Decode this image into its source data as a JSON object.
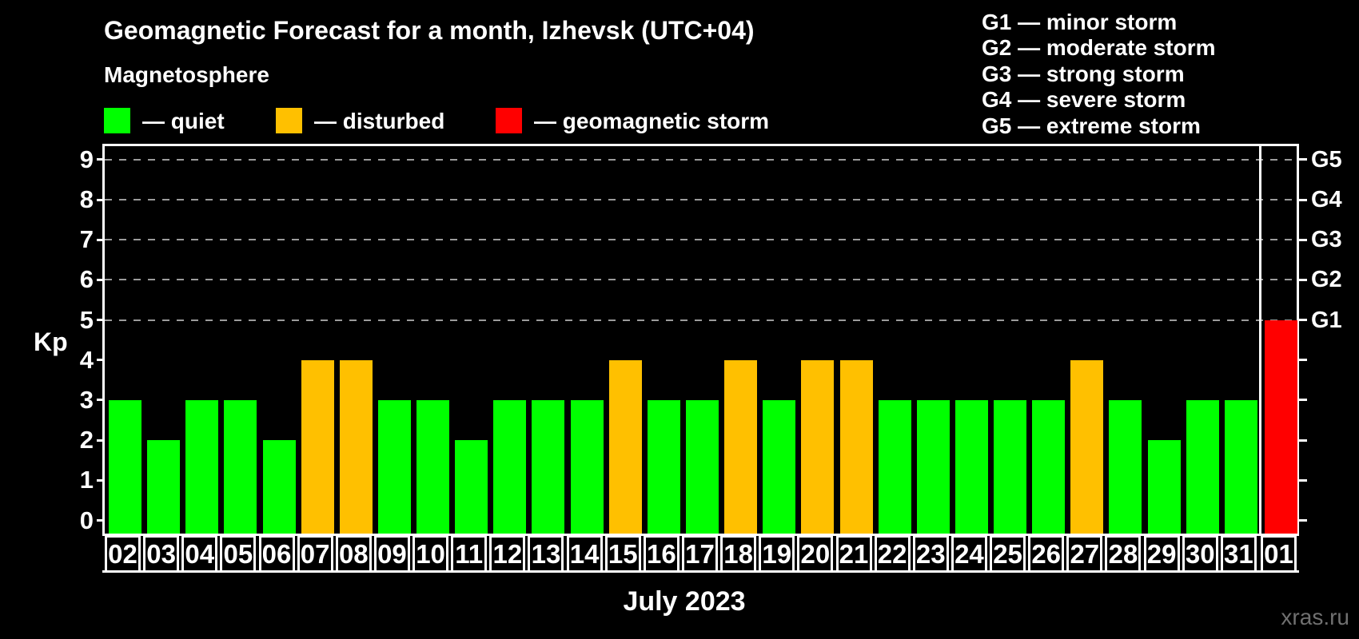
{
  "title": "Geomagnetic Forecast for a month, Izhevsk (UTC+04)",
  "subtitle": "Magnetosphere",
  "legend": [
    {
      "status": "quiet",
      "label": "— quiet",
      "color": "#00ff00"
    },
    {
      "status": "disturbed",
      "label": "— disturbed",
      "color": "#ffc000"
    },
    {
      "status": "storm",
      "label": "— geomagnetic storm",
      "color": "#ff0000"
    }
  ],
  "storm_scale": [
    {
      "code": "G1",
      "kp": 5,
      "label": "minor storm",
      "line": "G1 — minor storm"
    },
    {
      "code": "G2",
      "kp": 6,
      "label": "moderate storm",
      "line": "G2 — moderate storm"
    },
    {
      "code": "G3",
      "kp": 7,
      "label": "strong storm",
      "line": "G3 — strong storm"
    },
    {
      "code": "G4",
      "kp": 8,
      "label": "severe storm",
      "line": "G4 — severe storm"
    },
    {
      "code": "G5",
      "kp": 9,
      "label": "extreme storm",
      "line": "G5 — extreme storm"
    }
  ],
  "axis": {
    "ylabel": "Kp",
    "yticks": [
      0,
      1,
      2,
      3,
      4,
      5,
      6,
      7,
      8,
      9
    ],
    "xlabel": "July 2023"
  },
  "watermark": "xras.ru",
  "chart_data": {
    "type": "bar",
    "title": "Geomagnetic Forecast for a month, Izhevsk (UTC+04)",
    "xlabel": "July 2023",
    "ylabel": "Kp",
    "ylim": [
      0,
      9
    ],
    "grid_levels": [
      5,
      6,
      7,
      8,
      9
    ],
    "grid_on": true,
    "legend_position": "top-left",
    "categories": [
      "02",
      "03",
      "04",
      "05",
      "06",
      "07",
      "08",
      "09",
      "10",
      "11",
      "12",
      "13",
      "14",
      "15",
      "16",
      "17",
      "18",
      "19",
      "20",
      "21",
      "22",
      "23",
      "24",
      "25",
      "26",
      "27",
      "28",
      "29",
      "30",
      "31",
      "01"
    ],
    "values": [
      3,
      2,
      3,
      3,
      2,
      4,
      4,
      3,
      3,
      2,
      3,
      3,
      3,
      4,
      3,
      3,
      4,
      3,
      4,
      4,
      3,
      3,
      3,
      3,
      3,
      4,
      3,
      2,
      3,
      3,
      5
    ],
    "statuses": [
      "quiet",
      "quiet",
      "quiet",
      "quiet",
      "quiet",
      "disturbed",
      "disturbed",
      "quiet",
      "quiet",
      "quiet",
      "quiet",
      "quiet",
      "quiet",
      "disturbed",
      "quiet",
      "quiet",
      "disturbed",
      "quiet",
      "disturbed",
      "disturbed",
      "quiet",
      "quiet",
      "quiet",
      "quiet",
      "quiet",
      "disturbed",
      "quiet",
      "quiet",
      "quiet",
      "quiet",
      "storm"
    ],
    "colors": {
      "quiet": "#00ff00",
      "disturbed": "#ffc000",
      "storm": "#ff0000"
    },
    "divider_after": "31"
  }
}
